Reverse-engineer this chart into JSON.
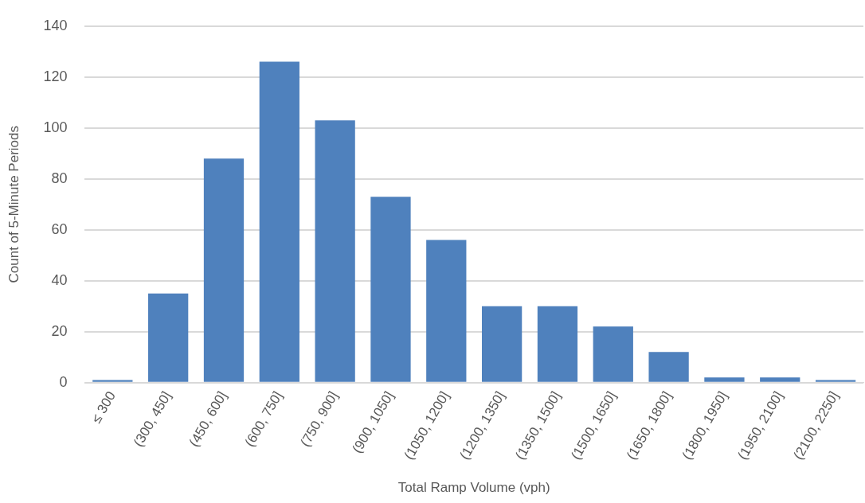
{
  "chart_data": {
    "type": "bar",
    "xlabel": "Total Ramp Volume (vph)",
    "ylabel": "Count of 5-Minute Periods",
    "categories": [
      "≤ 300",
      "(300, 450]",
      "(450, 600]",
      "(600, 750]",
      "(750, 900]",
      "(900, 1050]",
      "(1050, 1200]",
      "(1200, 1350]",
      "(1350, 1500]",
      "(1500, 1650]",
      "(1650, 1800]",
      "(1800, 1950]",
      "(1950, 2100]",
      "(2100, 2250]"
    ],
    "values": [
      1,
      35,
      88,
      126,
      103,
      73,
      56,
      30,
      30,
      22,
      12,
      2,
      2,
      1
    ],
    "color": "#4f81bd",
    "ylim": [
      0,
      140
    ],
    "yticks": [
      0,
      20,
      40,
      60,
      80,
      100,
      120,
      140
    ],
    "grid": "y",
    "legend": false
  }
}
